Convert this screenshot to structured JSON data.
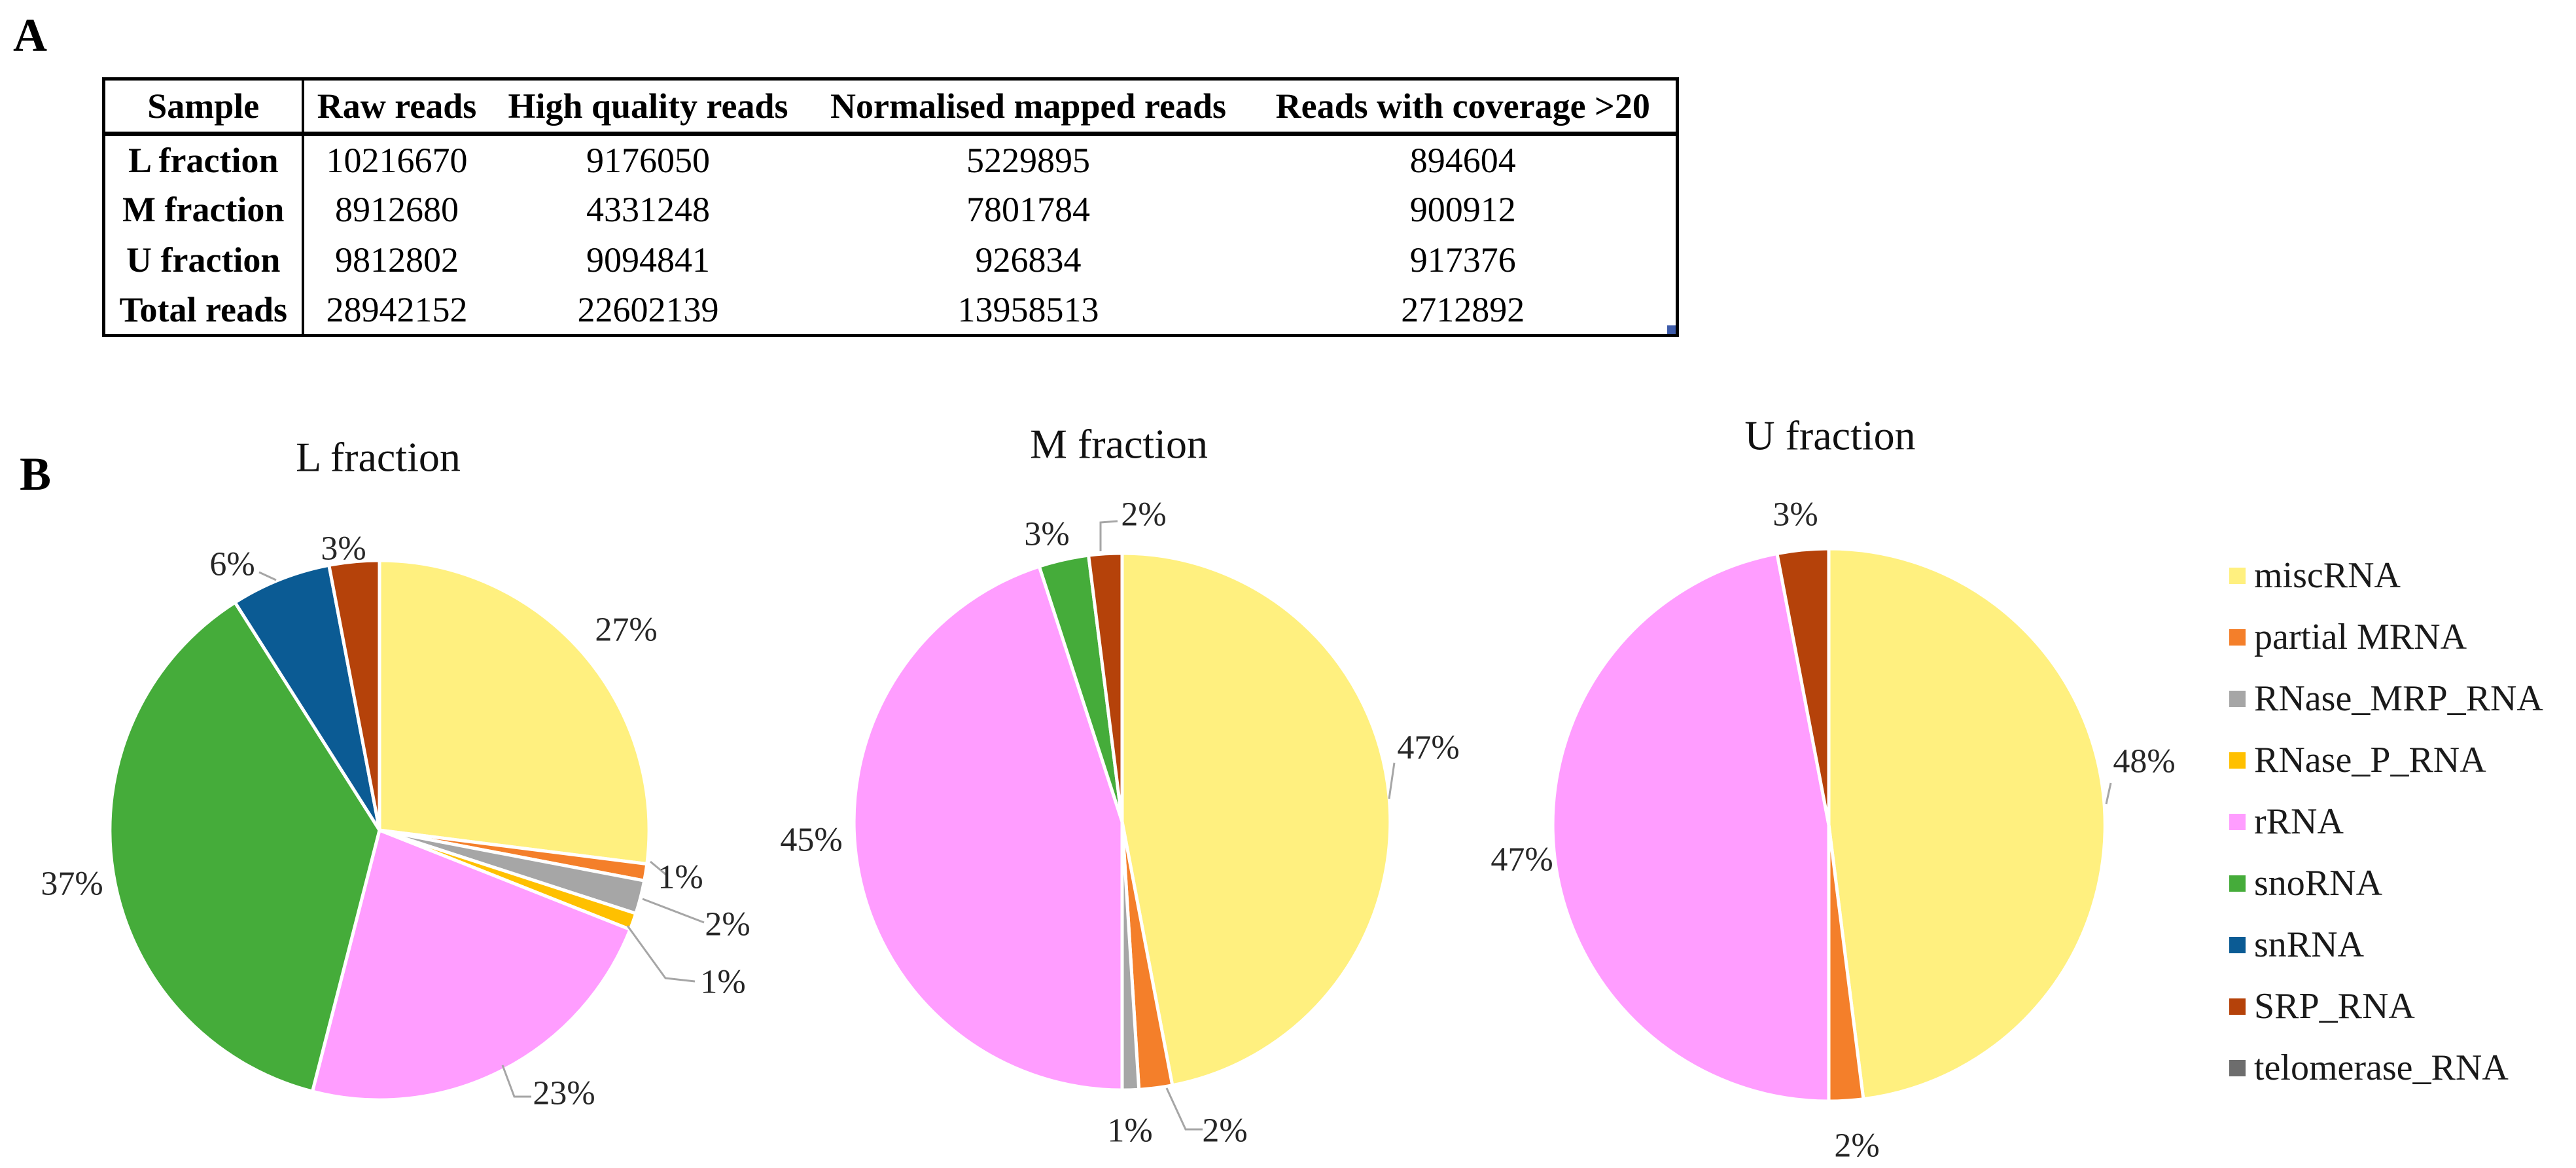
{
  "panel_labels": {
    "a": "A",
    "b": "B"
  },
  "table": {
    "headers": [
      "Sample",
      "Raw reads",
      "High quality reads",
      "Normalised mapped reads",
      "Reads with coverage >20"
    ],
    "rows": [
      [
        "L fraction",
        "10216670",
        "9176050",
        "5229895",
        "894604"
      ],
      [
        "M fraction",
        "8912680",
        "4331248",
        "7801784",
        "900912"
      ],
      [
        "U fraction",
        "9812802",
        "9094841",
        "926834",
        "917376"
      ],
      [
        "Total reads",
        "28942152",
        "22602139",
        "13958513",
        "2712892"
      ]
    ]
  },
  "legend": [
    {
      "label": "miscRNA",
      "color": "#FFF07F"
    },
    {
      "label": "partial MRNA",
      "color": "#F47F2A"
    },
    {
      "label": "RNase_MRP_RNA",
      "color": "#A6A6A6"
    },
    {
      "label": "RNase_P_RNA",
      "color": "#FFC000"
    },
    {
      "label": "rRNA",
      "color": "#FF9DFF"
    },
    {
      "label": "snoRNA",
      "color": "#45AC3A"
    },
    {
      "label": "snRNA",
      "color": "#0B5B94"
    },
    {
      "label": "SRP_RNA",
      "color": "#B5420A"
    },
    {
      "label": "telomerase_RNA",
      "color": "#6D6D6D"
    }
  ],
  "chart_data": [
    {
      "type": "pie",
      "title": "L fraction",
      "categories": [
        "miscRNA",
        "partial MRNA",
        "RNase_MRP_RNA",
        "RNase_P_RNA",
        "rRNA",
        "snoRNA",
        "snRNA",
        "SRP_RNA"
      ],
      "values": [
        27,
        1,
        2,
        1,
        23,
        37,
        6,
        3
      ],
      "labels": [
        "27%",
        "1%",
        "2%",
        "1%",
        "23%",
        "37%",
        "6%",
        "3%"
      ]
    },
    {
      "type": "pie",
      "title": "M fraction",
      "categories": [
        "miscRNA",
        "partial MRNA",
        "RNase_MRP_RNA",
        "rRNA",
        "snoRNA",
        "SRP_RNA"
      ],
      "values": [
        47,
        2,
        1,
        45,
        3,
        2
      ],
      "labels": [
        "47%",
        "2%",
        "1%",
        "45%",
        "3%",
        "2%"
      ]
    },
    {
      "type": "pie",
      "title": "U fraction",
      "categories": [
        "miscRNA",
        "partial MRNA",
        "rRNA",
        "SRP_RNA"
      ],
      "values": [
        48,
        2,
        47,
        3
      ],
      "labels": [
        "48%",
        "2%",
        "47%",
        "3%"
      ]
    }
  ]
}
